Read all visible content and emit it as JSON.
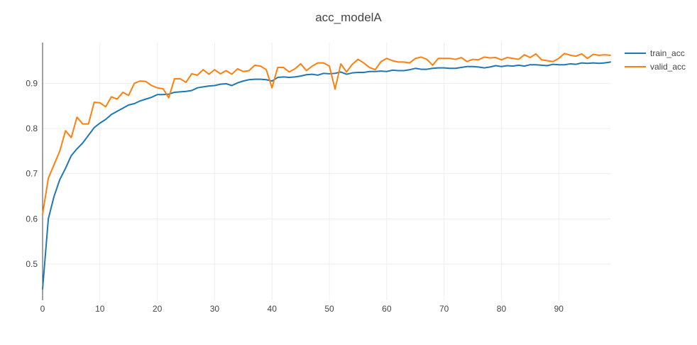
{
  "chart_data": {
    "type": "line",
    "title": "acc_modelA",
    "xlabel": "",
    "ylabel": "",
    "xlim": [
      0,
      99
    ],
    "ylim": [
      0.42,
      0.99
    ],
    "x_ticks": [
      0,
      10,
      20,
      30,
      40,
      50,
      60,
      70,
      80,
      90
    ],
    "y_ticks": [
      0.5,
      0.6,
      0.7,
      0.8,
      0.9
    ],
    "grid": true,
    "legend_position": "top-right",
    "x": [
      0,
      1,
      2,
      3,
      4,
      5,
      6,
      7,
      8,
      9,
      10,
      11,
      12,
      13,
      14,
      15,
      16,
      17,
      18,
      19,
      20,
      21,
      22,
      23,
      24,
      25,
      26,
      27,
      28,
      29,
      30,
      31,
      32,
      33,
      34,
      35,
      36,
      37,
      38,
      39,
      40,
      41,
      42,
      43,
      44,
      45,
      46,
      47,
      48,
      49,
      50,
      51,
      52,
      53,
      54,
      55,
      56,
      57,
      58,
      59,
      60,
      61,
      62,
      63,
      64,
      65,
      66,
      67,
      68,
      69,
      70,
      71,
      72,
      73,
      74,
      75,
      76,
      77,
      78,
      79,
      80,
      81,
      82,
      83,
      84,
      85,
      86,
      87,
      88,
      89,
      90,
      91,
      92,
      93,
      94,
      95,
      96,
      97,
      98,
      99
    ],
    "series": [
      {
        "name": "train_acc",
        "color": "#1f77b4",
        "values": [
          0.445,
          0.6,
          0.65,
          0.687,
          0.712,
          0.74,
          0.755,
          0.768,
          0.785,
          0.802,
          0.812,
          0.82,
          0.831,
          0.838,
          0.845,
          0.852,
          0.855,
          0.861,
          0.865,
          0.869,
          0.875,
          0.875,
          0.876,
          0.88,
          0.881,
          0.882,
          0.884,
          0.89,
          0.892,
          0.894,
          0.895,
          0.898,
          0.899,
          0.895,
          0.901,
          0.905,
          0.908,
          0.909,
          0.909,
          0.908,
          0.905,
          0.913,
          0.914,
          0.913,
          0.914,
          0.916,
          0.919,
          0.92,
          0.918,
          0.922,
          0.921,
          0.922,
          0.925,
          0.92,
          0.923,
          0.924,
          0.924,
          0.926,
          0.926,
          0.927,
          0.926,
          0.929,
          0.928,
          0.928,
          0.93,
          0.933,
          0.931,
          0.931,
          0.933,
          0.934,
          0.934,
          0.933,
          0.933,
          0.935,
          0.937,
          0.937,
          0.936,
          0.934,
          0.936,
          0.939,
          0.937,
          0.939,
          0.938,
          0.94,
          0.938,
          0.941,
          0.941,
          0.94,
          0.939,
          0.942,
          0.941,
          0.941,
          0.943,
          0.942,
          0.945,
          0.944,
          0.945,
          0.944,
          0.945,
          0.947
        ]
      },
      {
        "name": "valid_acc",
        "color": "#ff7f0e",
        "values": [
          0.61,
          0.69,
          0.72,
          0.75,
          0.795,
          0.78,
          0.825,
          0.81,
          0.81,
          0.858,
          0.857,
          0.848,
          0.87,
          0.865,
          0.88,
          0.873,
          0.9,
          0.905,
          0.904,
          0.895,
          0.89,
          0.888,
          0.868,
          0.91,
          0.91,
          0.902,
          0.921,
          0.918,
          0.93,
          0.92,
          0.93,
          0.921,
          0.928,
          0.92,
          0.932,
          0.926,
          0.928,
          0.94,
          0.938,
          0.93,
          0.89,
          0.935,
          0.935,
          0.925,
          0.932,
          0.943,
          0.928,
          0.938,
          0.945,
          0.945,
          0.938,
          0.887,
          0.943,
          0.925,
          0.942,
          0.953,
          0.945,
          0.935,
          0.93,
          0.948,
          0.955,
          0.95,
          0.947,
          0.947,
          0.945,
          0.955,
          0.958,
          0.953,
          0.94,
          0.955,
          0.955,
          0.955,
          0.953,
          0.957,
          0.948,
          0.953,
          0.952,
          0.958,
          0.956,
          0.957,
          0.952,
          0.957,
          0.955,
          0.953,
          0.963,
          0.957,
          0.965,
          0.952,
          0.95,
          0.948,
          0.955,
          0.966,
          0.962,
          0.96,
          0.965,
          0.955,
          0.964,
          0.962,
          0.963,
          0.962
        ]
      }
    ]
  }
}
